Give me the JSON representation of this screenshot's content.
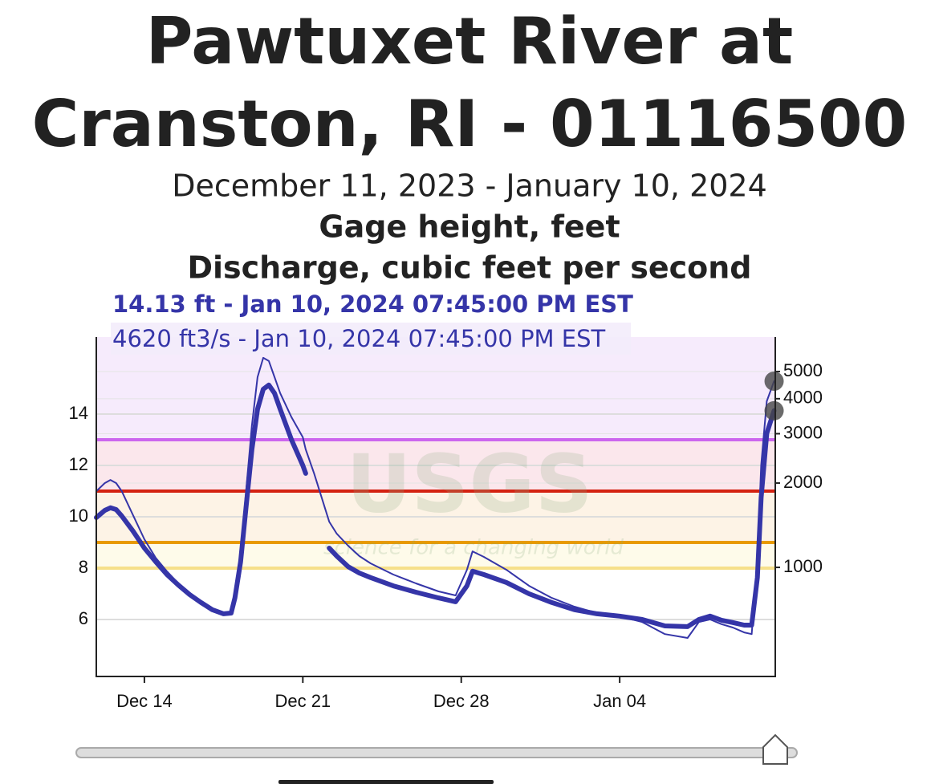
{
  "chart_data": {
    "type": "line",
    "title": [
      "Pawtuxet River at",
      "Cranston, RI - 01116500"
    ],
    "subtitle": "December 11, 2023 - January 10, 2024",
    "axis_titles": [
      "Gage height, feet",
      "Discharge, cubic feet per second"
    ],
    "annotations": [
      "14.13 ft - Jan 10, 2024 07:45:00 PM EST",
      "4620 ft3/s - Jan 10, 2024 07:45:00 PM EST"
    ],
    "watermark": "USGS",
    "watermark_tagline": "science for a changing world",
    "x": [
      "2023-12-11T21:00",
      "2023-12-12T06:00",
      "2023-12-12T12:00",
      "2023-12-12T18:00",
      "2023-12-13T00:00",
      "2023-12-13T12:00",
      "2023-12-14T00:00",
      "2023-12-14T12:00",
      "2023-12-15T00:00",
      "2023-12-15T12:00",
      "2023-12-16T00:00",
      "2023-12-16T12:00",
      "2023-12-17T00:00",
      "2023-12-17T12:00",
      "2023-12-17T20:00",
      "2023-12-18T00:00",
      "2023-12-18T06:00",
      "2023-12-18T12:00",
      "2023-12-18T18:00",
      "2023-12-19T00:00",
      "2023-12-19T06:00",
      "2023-12-19T12:00",
      "2023-12-19T18:00",
      "2023-12-20T00:00",
      "2023-12-20T12:00",
      "2023-12-21T00:00",
      "2023-12-21T03:00",
      "2023-12-21T12:00",
      "2023-12-22T00:00",
      "2023-12-22T04:00",
      "2023-12-22T12:00",
      "2023-12-23T00:00",
      "2023-12-23T12:00",
      "2023-12-24T00:00",
      "2023-12-25T00:00",
      "2023-12-26T00:00",
      "2023-12-27T00:00",
      "2023-12-27T18:00",
      "2023-12-28T06:00",
      "2023-12-28T12:00",
      "2023-12-29T00:00",
      "2023-12-30T00:00",
      "2023-12-31T00:00",
      "2024-01-01T00:00",
      "2024-01-02T00:00",
      "2024-01-03T00:00",
      "2024-01-04T00:00",
      "2024-01-05T00:00",
      "2024-01-06T00:00",
      "2024-01-07T00:00",
      "2024-01-07T12:00",
      "2024-01-08T00:00",
      "2024-01-08T12:00",
      "2024-01-09T00:00",
      "2024-01-09T12:00",
      "2024-01-09T20:00",
      "2024-01-10T02:00",
      "2024-01-10T06:00",
      "2024-01-10T12:00",
      "2024-01-10T19:45"
    ],
    "series": [
      {
        "name": "Gage height, feet",
        "color": "#3535a8",
        "width": 6,
        "values": [
          9.97,
          10.25,
          10.35,
          10.28,
          10.03,
          9.44,
          8.78,
          8.25,
          7.75,
          7.34,
          6.97,
          6.66,
          6.38,
          6.22,
          6.25,
          6.84,
          8.25,
          10.44,
          12.63,
          14.19,
          14.97,
          15.13,
          14.81,
          14.19,
          13.0,
          12.0,
          11.69,
          null,
          null,
          8.78,
          8.47,
          8.06,
          7.81,
          7.63,
          7.31,
          7.06,
          6.84,
          6.69,
          7.31,
          7.88,
          7.75,
          7.44,
          7.0,
          6.66,
          6.38,
          6.22,
          6.13,
          6.0,
          5.75,
          5.72,
          6.0,
          6.13,
          5.97,
          5.88,
          5.78,
          5.78,
          7.63,
          10.75,
          13.25,
          14.13
        ]
      },
      {
        "name": "Discharge, cubic feet per second",
        "color": "#3535a8",
        "width": 2,
        "axis": "y2",
        "values": [
          1871,
          2000,
          2052,
          2000,
          1870,
          1535,
          1260,
          1082,
          967,
          877,
          804,
          753,
          714,
          687,
          695,
          804,
          1119,
          1897,
          3215,
          4775,
          5597,
          5450,
          4775,
          4188,
          3436,
          2913,
          2637,
          2163,
          1607,
          1456,
          1319,
          1195,
          1097,
          1033,
          943,
          877,
          821,
          794,
          980,
          1141,
          1090,
          980,
          859,
          778,
          724,
          687,
          669,
          638,
          578,
          560,
          638,
          652,
          627,
          610,
          586,
          578,
          1047,
          2311,
          3918,
          4620
        ]
      }
    ],
    "xlim": [
      "2023-12-11T21:00",
      "2024-01-10T21:00"
    ],
    "xticks": [
      {
        "value": "2023-12-14T00:00",
        "label": "Dec 14"
      },
      {
        "value": "2023-12-21T00:00",
        "label": "Dec 21"
      },
      {
        "value": "2023-12-28T00:00",
        "label": "Dec 28"
      },
      {
        "value": "2024-01-04T00:00",
        "label": "Jan 04"
      }
    ],
    "ylim": [
      3.78,
      17
    ],
    "yticks": [
      6,
      8,
      10,
      12,
      14
    ],
    "y2lim": [
      408,
      6640
    ],
    "y2ticks": [
      1000,
      2000,
      3000,
      4000,
      5000
    ],
    "y2log": true,
    "grid": true,
    "thresholds": [
      {
        "value": 13,
        "color": "#cc66ee",
        "band": "#f6ebfc"
      },
      {
        "value": 11,
        "color": "#d42211",
        "band": "#fbe7ec"
      },
      {
        "value": 9,
        "color": "#e89a00",
        "band": "#fdf3e6"
      },
      {
        "value": 8,
        "color": "#f6e08a",
        "band": "#fefbea"
      }
    ]
  }
}
